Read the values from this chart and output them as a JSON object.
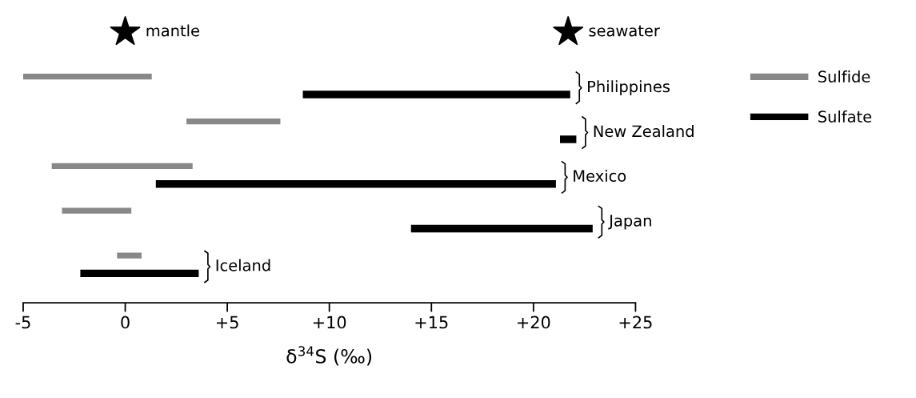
{
  "chart_data": {
    "type": "bar",
    "orientation": "horizontal",
    "xlabel": "δ$^{34}$S (‰)",
    "categories": [
      "Philippines",
      "New Zealand",
      "Mexico",
      "Japan",
      "Iceland"
    ],
    "series": [
      {
        "name": "Sulfide",
        "color": "#888888",
        "base": [
          -5.0,
          3.0,
          -3.6,
          -3.1,
          -0.4
        ],
        "values": [
          6.3,
          4.6,
          6.9,
          3.4,
          1.2
        ]
      },
      {
        "name": "Sulfate",
        "color": "#000000",
        "base": [
          8.7,
          21.3,
          1.5,
          14.0,
          -2.2
        ],
        "values": [
          13.1,
          0.8,
          19.6,
          8.9,
          5.8
        ]
      }
    ],
    "annotations": [
      "mantle",
      "seawater"
    ],
    "xlim": [
      -5,
      25
    ],
    "xticks": [
      -5,
      0,
      {
        "value": 5,
        "label": "+5"
      },
      {
        "value": 10,
        "label": "+10"
      },
      {
        "value": 15,
        "label": "+15"
      },
      {
        "value": 20,
        "label": "+20"
      },
      {
        "value": 25,
        "label": "+25"
      }
    ],
    "tick_labels": "x",
    "legend": "right",
    "grid": false
  }
}
